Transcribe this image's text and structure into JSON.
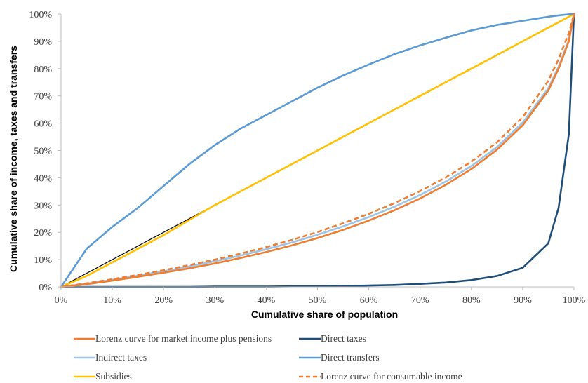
{
  "chart_data": {
    "type": "line",
    "title": "",
    "xlabel": "Cumulative share of population",
    "ylabel": "Cumulative share of income, taxes and transfers",
    "xlim": [
      0,
      1
    ],
    "ylim": [
      0,
      1
    ],
    "x_ticks": [
      "0%",
      "10%",
      "20%",
      "30%",
      "40%",
      "50%",
      "60%",
      "70%",
      "80%",
      "90%",
      "100%"
    ],
    "y_ticks": [
      "0%",
      "10%",
      "20%",
      "30%",
      "40%",
      "50%",
      "60%",
      "70%",
      "80%",
      "90%",
      "100%"
    ],
    "grid": false,
    "legend_position": "bottom",
    "x": [
      0,
      0.05,
      0.1,
      0.15,
      0.2,
      0.25,
      0.3,
      0.35,
      0.4,
      0.45,
      0.5,
      0.55,
      0.6,
      0.65,
      0.7,
      0.75,
      0.8,
      0.85,
      0.9,
      0.95,
      0.97,
      0.99,
      1.0
    ],
    "equality_line": {
      "x": [
        0,
        1
      ],
      "y": [
        0,
        1
      ],
      "color": "#000000"
    },
    "series": [
      {
        "name": "Lorenz curve for market income plus pensions",
        "color": "#ED7D31",
        "dash": "solid",
        "values": [
          0,
          0.01,
          0.023,
          0.037,
          0.052,
          0.068,
          0.086,
          0.106,
          0.128,
          0.152,
          0.179,
          0.209,
          0.243,
          0.281,
          0.324,
          0.374,
          0.432,
          0.503,
          0.592,
          0.72,
          0.8,
          0.9,
          1.0
        ]
      },
      {
        "name": "Direct taxes",
        "color": "#1F4E79",
        "dash": "solid",
        "values": [
          0,
          0,
          0,
          0,
          0,
          0,
          0.001,
          0.001,
          0.001,
          0.002,
          0.002,
          0.003,
          0.005,
          0.007,
          0.011,
          0.016,
          0.025,
          0.04,
          0.07,
          0.16,
          0.29,
          0.56,
          1.0
        ]
      },
      {
        "name": "Indirect taxes",
        "color": "#9DC3E6",
        "dash": "solid",
        "values": [
          0,
          0.012,
          0.026,
          0.041,
          0.057,
          0.075,
          0.094,
          0.115,
          0.138,
          0.163,
          0.191,
          0.222,
          0.256,
          0.294,
          0.337,
          0.386,
          0.443,
          0.513,
          0.602,
          0.728,
          0.807,
          0.905,
          1.0
        ]
      },
      {
        "name": "Direct transfers",
        "color": "#5B9BD5",
        "dash": "solid",
        "values": [
          0,
          0.14,
          0.22,
          0.29,
          0.37,
          0.45,
          0.52,
          0.58,
          0.63,
          0.68,
          0.73,
          0.775,
          0.815,
          0.853,
          0.885,
          0.913,
          0.94,
          0.96,
          0.975,
          0.99,
          0.995,
          0.999,
          1.0
        ]
      },
      {
        "name": "Subsidies",
        "color": "#FFC000",
        "dash": "solid",
        "values": [
          0,
          0.04,
          0.09,
          0.14,
          0.19,
          0.245,
          0.3,
          0.35,
          0.4,
          0.45,
          0.5,
          0.55,
          0.6,
          0.65,
          0.7,
          0.75,
          0.8,
          0.85,
          0.9,
          0.95,
          0.97,
          0.99,
          1.0
        ]
      },
      {
        "name": "Lorenz curve for consumable income",
        "color": "#ED7D31",
        "dash": "dashed",
        "values": [
          0,
          0.013,
          0.028,
          0.044,
          0.061,
          0.08,
          0.1,
          0.122,
          0.146,
          0.172,
          0.201,
          0.233,
          0.268,
          0.307,
          0.351,
          0.401,
          0.459,
          0.53,
          0.622,
          0.755,
          0.835,
          0.93,
          1.0
        ]
      }
    ]
  }
}
